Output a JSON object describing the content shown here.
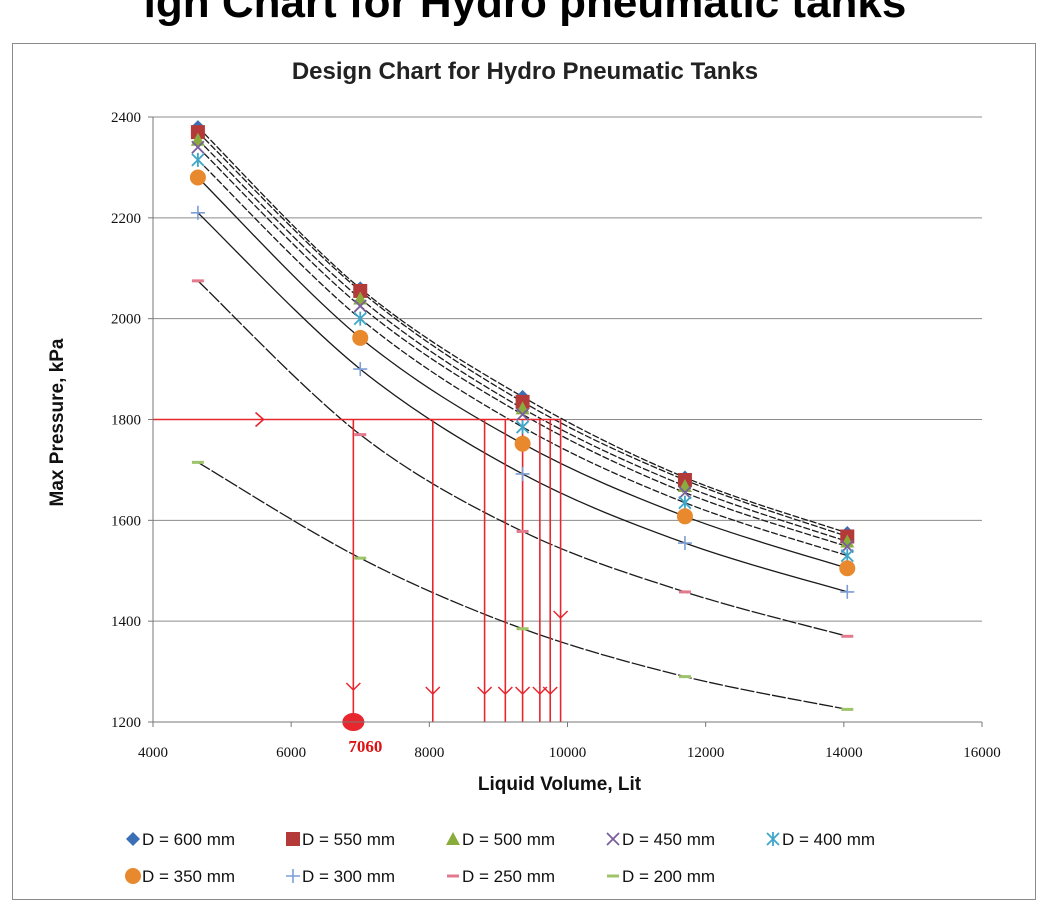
{
  "header": {
    "cut_title": "ign Chart for Hydro pneumatic tanks"
  },
  "chart_data": {
    "type": "scatter",
    "title": "Design Chart for Hydro Pneumatic Tanks",
    "xlabel": "Liquid Volume, Lit",
    "ylabel": "Max Pressure, kPa",
    "xlim": [
      4000,
      16000
    ],
    "ylim": [
      1200,
      2400
    ],
    "xticks": [
      4000,
      6000,
      8000,
      10000,
      12000,
      14000,
      16000
    ],
    "yticks": [
      1200,
      1400,
      1600,
      1800,
      2000,
      2200,
      2400
    ],
    "grid": "horizontal",
    "legend_position": "bottom",
    "series": [
      {
        "name": "D = 600 mm",
        "color": "#3b6fb6",
        "marker": "diamond",
        "x": [
          4650,
          7000,
          9350,
          11700,
          14050
        ],
        "y": [
          2380,
          2060,
          1845,
          1685,
          1575
        ]
      },
      {
        "name": "D = 550 mm",
        "color": "#b43a3a",
        "marker": "square",
        "x": [
          4650,
          7000,
          9350,
          11700,
          14050
        ],
        "y": [
          2370,
          2055,
          1835,
          1680,
          1568
        ]
      },
      {
        "name": "D = 500 mm",
        "color": "#8aac3c",
        "marker": "triangle",
        "x": [
          4650,
          7000,
          9350,
          11700,
          14050
        ],
        "y": [
          2355,
          2040,
          1822,
          1668,
          1558
        ]
      },
      {
        "name": "D = 450 mm",
        "color": "#7a5f9c",
        "marker": "x",
        "x": [
          4650,
          7000,
          9350,
          11700,
          14050
        ],
        "y": [
          2340,
          2025,
          1810,
          1655,
          1548
        ]
      },
      {
        "name": "D = 400 mm",
        "color": "#3ea6c8",
        "marker": "asterisk",
        "x": [
          4650,
          7000,
          9350,
          11700,
          14050
        ],
        "y": [
          2315,
          2000,
          1785,
          1635,
          1530
        ]
      },
      {
        "name": "D = 350 mm",
        "color": "#e8892e",
        "marker": "circle",
        "x": [
          4650,
          7000,
          9350,
          11700,
          14050
        ],
        "y": [
          2280,
          1962,
          1752,
          1608,
          1505
        ]
      },
      {
        "name": "D = 300 mm",
        "color": "#7c9ed6",
        "marker": "plus",
        "x": [
          4650,
          7000,
          9350,
          11700,
          14050
        ],
        "y": [
          2210,
          1900,
          1692,
          1555,
          1458
        ]
      },
      {
        "name": "D = 250 mm",
        "color": "#e07a8c",
        "marker": "dash",
        "x": [
          4650,
          7000,
          9350,
          11700,
          14050
        ],
        "y": [
          2075,
          1770,
          1578,
          1458,
          1370
        ]
      },
      {
        "name": "D = 200 mm",
        "color": "#9ec46a",
        "marker": "dash",
        "x": [
          4650,
          7000,
          9350,
          11700,
          14050
        ],
        "y": [
          1715,
          1525,
          1385,
          1290,
          1225
        ]
      }
    ],
    "annotation": {
      "pressure": 1800,
      "volume_label": "7060",
      "volume_marker": 6900,
      "drop_volumes": [
        6900,
        8050,
        8800,
        9100,
        9350,
        9600,
        9750,
        9900
      ],
      "color": "#e8262e"
    }
  }
}
